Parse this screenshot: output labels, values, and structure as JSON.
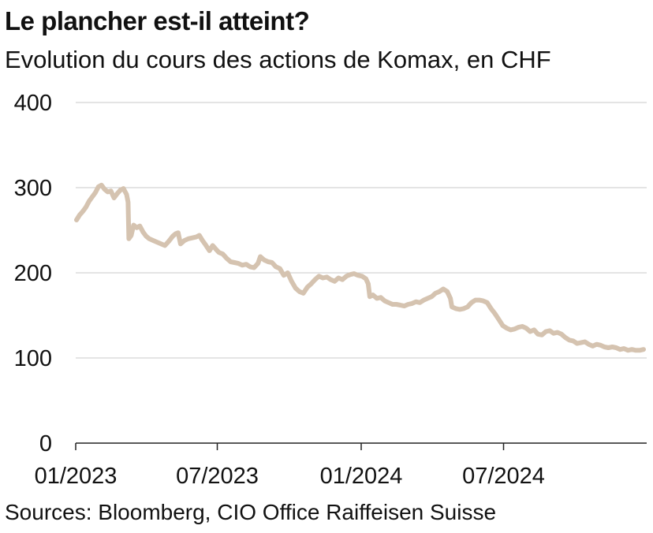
{
  "header": {
    "title": "Le plancher est-il atteint?",
    "subtitle": "Evolution du cours des actions de Komax, en CHF"
  },
  "footer": {
    "source": "Sources: Bloomberg, CIO Office Raiffeisen Suisse"
  },
  "colors": {
    "series": "#d5c3b0",
    "grid": "#c8c8c8",
    "axis": "#222222",
    "text": "#111111"
  },
  "chart_data": {
    "type": "line",
    "title": "Le plancher est-il atteint?",
    "subtitle": "Evolution du cours des actions de Komax, en CHF",
    "xlabel": "",
    "ylabel": "",
    "ylim": [
      0,
      400
    ],
    "yticks": [
      0,
      100,
      200,
      300,
      400
    ],
    "xlim": [
      "2023-01-01",
      "2024-12-31"
    ],
    "xticks": [
      {
        "date": "2023-01-01",
        "label": "01/2023"
      },
      {
        "date": "2023-07-01",
        "label": "07/2023"
      },
      {
        "date": "2024-01-01",
        "label": "01/2024"
      },
      {
        "date": "2024-07-01",
        "label": "07/2024"
      }
    ],
    "grid": true,
    "series": [
      {
        "color": "#d5c3b0",
        "points": [
          [
            "2023-01-02",
            262
          ],
          [
            "2023-01-06",
            268
          ],
          [
            "2023-01-10",
            272
          ],
          [
            "2023-01-14",
            277
          ],
          [
            "2023-01-18",
            284
          ],
          [
            "2023-01-22",
            289
          ],
          [
            "2023-01-26",
            294
          ],
          [
            "2023-01-30",
            301
          ],
          [
            "2023-02-03",
            303
          ],
          [
            "2023-02-07",
            298
          ],
          [
            "2023-02-11",
            295
          ],
          [
            "2023-02-15",
            296
          ],
          [
            "2023-02-19",
            288
          ],
          [
            "2023-02-23",
            293
          ],
          [
            "2023-02-27",
            297
          ],
          [
            "2023-03-03",
            299
          ],
          [
            "2023-03-07",
            292
          ],
          [
            "2023-03-09",
            283
          ],
          [
            "2023-03-10",
            240
          ],
          [
            "2023-03-13",
            244
          ],
          [
            "2023-03-16",
            256
          ],
          [
            "2023-03-20",
            253
          ],
          [
            "2023-03-24",
            255
          ],
          [
            "2023-03-28",
            248
          ],
          [
            "2023-04-01",
            243
          ],
          [
            "2023-04-05",
            240
          ],
          [
            "2023-04-10",
            238
          ],
          [
            "2023-04-15",
            236
          ],
          [
            "2023-04-20",
            234
          ],
          [
            "2023-04-25",
            232
          ],
          [
            "2023-04-30",
            237
          ],
          [
            "2023-05-05",
            243
          ],
          [
            "2023-05-09",
            246
          ],
          [
            "2023-05-12",
            247
          ],
          [
            "2023-05-15",
            234
          ],
          [
            "2023-05-20",
            238
          ],
          [
            "2023-05-25",
            240
          ],
          [
            "2023-05-30",
            241
          ],
          [
            "2023-06-04",
            242
          ],
          [
            "2023-06-08",
            244
          ],
          [
            "2023-06-12",
            238
          ],
          [
            "2023-06-16",
            233
          ],
          [
            "2023-06-21",
            226
          ],
          [
            "2023-06-25",
            232
          ],
          [
            "2023-06-29",
            228
          ],
          [
            "2023-07-03",
            224
          ],
          [
            "2023-07-08",
            222
          ],
          [
            "2023-07-13",
            217
          ],
          [
            "2023-07-18",
            213
          ],
          [
            "2023-07-23",
            212
          ],
          [
            "2023-07-28",
            211
          ],
          [
            "2023-08-02",
            209
          ],
          [
            "2023-08-07",
            210
          ],
          [
            "2023-08-12",
            207
          ],
          [
            "2023-08-17",
            206
          ],
          [
            "2023-08-22",
            211
          ],
          [
            "2023-08-25",
            219
          ],
          [
            "2023-08-30",
            215
          ],
          [
            "2023-09-04",
            213
          ],
          [
            "2023-09-09",
            212
          ],
          [
            "2023-09-14",
            207
          ],
          [
            "2023-09-19",
            205
          ],
          [
            "2023-09-24",
            197
          ],
          [
            "2023-09-29",
            200
          ],
          [
            "2023-10-04",
            190
          ],
          [
            "2023-10-09",
            182
          ],
          [
            "2023-10-14",
            178
          ],
          [
            "2023-10-19",
            176
          ],
          [
            "2023-10-24",
            183
          ],
          [
            "2023-10-29",
            187
          ],
          [
            "2023-11-03",
            192
          ],
          [
            "2023-11-08",
            196
          ],
          [
            "2023-11-13",
            194
          ],
          [
            "2023-11-18",
            195
          ],
          [
            "2023-11-23",
            192
          ],
          [
            "2023-11-28",
            190
          ],
          [
            "2023-12-03",
            194
          ],
          [
            "2023-12-08",
            192
          ],
          [
            "2023-12-13",
            196
          ],
          [
            "2023-12-18",
            198
          ],
          [
            "2023-12-23",
            199
          ],
          [
            "2023-12-28",
            197
          ],
          [
            "2024-01-02",
            196
          ],
          [
            "2024-01-07",
            193
          ],
          [
            "2024-01-10",
            187
          ],
          [
            "2024-01-12",
            172
          ],
          [
            "2024-01-16",
            174
          ],
          [
            "2024-01-21",
            170
          ],
          [
            "2024-01-26",
            171
          ],
          [
            "2024-01-31",
            167
          ],
          [
            "2024-02-05",
            165
          ],
          [
            "2024-02-10",
            163
          ],
          [
            "2024-02-15",
            163
          ],
          [
            "2024-02-20",
            162
          ],
          [
            "2024-02-25",
            161
          ],
          [
            "2024-03-01",
            163
          ],
          [
            "2024-03-06",
            164
          ],
          [
            "2024-03-11",
            166
          ],
          [
            "2024-03-16",
            165
          ],
          [
            "2024-03-21",
            168
          ],
          [
            "2024-03-26",
            170
          ],
          [
            "2024-03-31",
            172
          ],
          [
            "2024-04-05",
            176
          ],
          [
            "2024-04-10",
            178
          ],
          [
            "2024-04-15",
            181
          ],
          [
            "2024-04-20",
            178
          ],
          [
            "2024-04-24",
            170
          ],
          [
            "2024-04-26",
            160
          ],
          [
            "2024-05-01",
            158
          ],
          [
            "2024-05-06",
            157
          ],
          [
            "2024-05-11",
            158
          ],
          [
            "2024-05-16",
            160
          ],
          [
            "2024-05-21",
            165
          ],
          [
            "2024-05-26",
            168
          ],
          [
            "2024-05-31",
            168
          ],
          [
            "2024-06-05",
            167
          ],
          [
            "2024-06-10",
            165
          ],
          [
            "2024-06-15",
            158
          ],
          [
            "2024-06-20",
            152
          ],
          [
            "2024-06-25",
            145
          ],
          [
            "2024-06-30",
            138
          ],
          [
            "2024-07-05",
            135
          ],
          [
            "2024-07-10",
            133
          ],
          [
            "2024-07-15",
            134
          ],
          [
            "2024-07-20",
            136
          ],
          [
            "2024-07-25",
            137
          ],
          [
            "2024-07-30",
            135
          ],
          [
            "2024-08-04",
            131
          ],
          [
            "2024-08-09",
            133
          ],
          [
            "2024-08-14",
            128
          ],
          [
            "2024-08-19",
            127
          ],
          [
            "2024-08-24",
            131
          ],
          [
            "2024-08-29",
            132
          ],
          [
            "2024-09-03",
            129
          ],
          [
            "2024-09-08",
            130
          ],
          [
            "2024-09-13",
            128
          ],
          [
            "2024-09-18",
            124
          ],
          [
            "2024-09-23",
            121
          ],
          [
            "2024-09-28",
            120
          ],
          [
            "2024-10-03",
            117
          ],
          [
            "2024-10-08",
            118
          ],
          [
            "2024-10-13",
            119
          ],
          [
            "2024-10-18",
            116
          ],
          [
            "2024-10-23",
            114
          ],
          [
            "2024-10-28",
            116
          ],
          [
            "2024-11-02",
            115
          ],
          [
            "2024-11-07",
            113
          ],
          [
            "2024-11-12",
            112
          ],
          [
            "2024-11-17",
            113
          ],
          [
            "2024-11-22",
            112
          ],
          [
            "2024-11-27",
            110
          ],
          [
            "2024-12-02",
            111
          ],
          [
            "2024-12-07",
            109
          ],
          [
            "2024-12-12",
            110
          ],
          [
            "2024-12-17",
            109
          ],
          [
            "2024-12-22",
            109
          ],
          [
            "2024-12-27",
            110
          ]
        ]
      }
    ]
  }
}
